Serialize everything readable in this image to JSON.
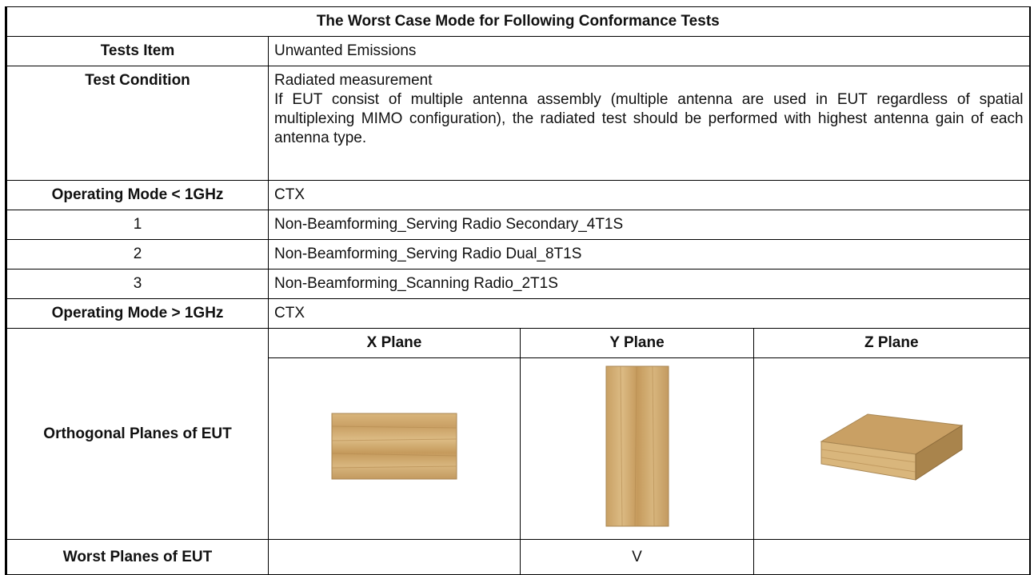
{
  "table": {
    "title": "The Worst Case Mode for Following Conformance Tests",
    "tests_item": {
      "label": "Tests Item",
      "value": "Unwanted Emissions"
    },
    "test_condition": {
      "label": "Test Condition",
      "lines": [
        "Radiated measurement",
        "If EUT consist of multiple antenna assembly (multiple antenna are used in EUT regardless of spatial multiplexing MIMO configuration), the radiated test should be performed with highest antenna gain of each antenna type."
      ]
    },
    "operating_mode_below": {
      "label": "Operating Mode < 1GHz",
      "value": "CTX"
    },
    "modes": [
      {
        "index": "1",
        "name": "Non-Beamforming_Serving Radio Secondary_4T1S"
      },
      {
        "index": "2",
        "name": "Non-Beamforming_Serving Radio Dual_8T1S"
      },
      {
        "index": "3",
        "name": "Non-Beamforming_Scanning Radio_2T1S"
      }
    ],
    "operating_mode_above": {
      "label": "Operating Mode > 1GHz",
      "value": "CTX"
    },
    "orthogonal_planes": {
      "label": "Orthogonal Planes of EUT",
      "headers": [
        "X Plane",
        "Y Plane",
        "Z Plane"
      ]
    },
    "worst_planes": {
      "label": "Worst Planes of EUT",
      "y": "V"
    }
  }
}
